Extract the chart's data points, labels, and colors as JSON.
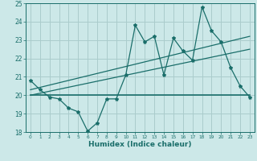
{
  "background_color": "#cce8e8",
  "grid_color": "#aacccc",
  "line_color": "#1a6e6a",
  "x_label": "Humidex (Indice chaleur)",
  "xlim": [
    -0.5,
    23.5
  ],
  "ylim": [
    18,
    25
  ],
  "yticks": [
    18,
    19,
    20,
    21,
    22,
    23,
    24,
    25
  ],
  "xticks": [
    0,
    1,
    2,
    3,
    4,
    5,
    6,
    7,
    8,
    9,
    10,
    11,
    12,
    13,
    14,
    15,
    16,
    17,
    18,
    19,
    20,
    21,
    22,
    23
  ],
  "series1_x": [
    0,
    1,
    2,
    3,
    4,
    5,
    6,
    7,
    8,
    9,
    10,
    11,
    12,
    13,
    14,
    15,
    16,
    17,
    18,
    19,
    20,
    21,
    22,
    23
  ],
  "series1_y": [
    20.8,
    20.3,
    19.9,
    19.8,
    19.3,
    19.1,
    18.05,
    18.5,
    19.8,
    19.8,
    21.1,
    23.8,
    22.9,
    23.2,
    21.1,
    23.1,
    22.4,
    21.9,
    24.8,
    23.5,
    22.9,
    21.5,
    20.5,
    19.9
  ],
  "series2_x": [
    0,
    23
  ],
  "series2_y": [
    20.0,
    20.0
  ],
  "trend1_x": [
    0,
    23
  ],
  "trend1_y": [
    20.0,
    22.5
  ],
  "trend2_x": [
    0,
    23
  ],
  "trend2_y": [
    20.3,
    23.2
  ]
}
